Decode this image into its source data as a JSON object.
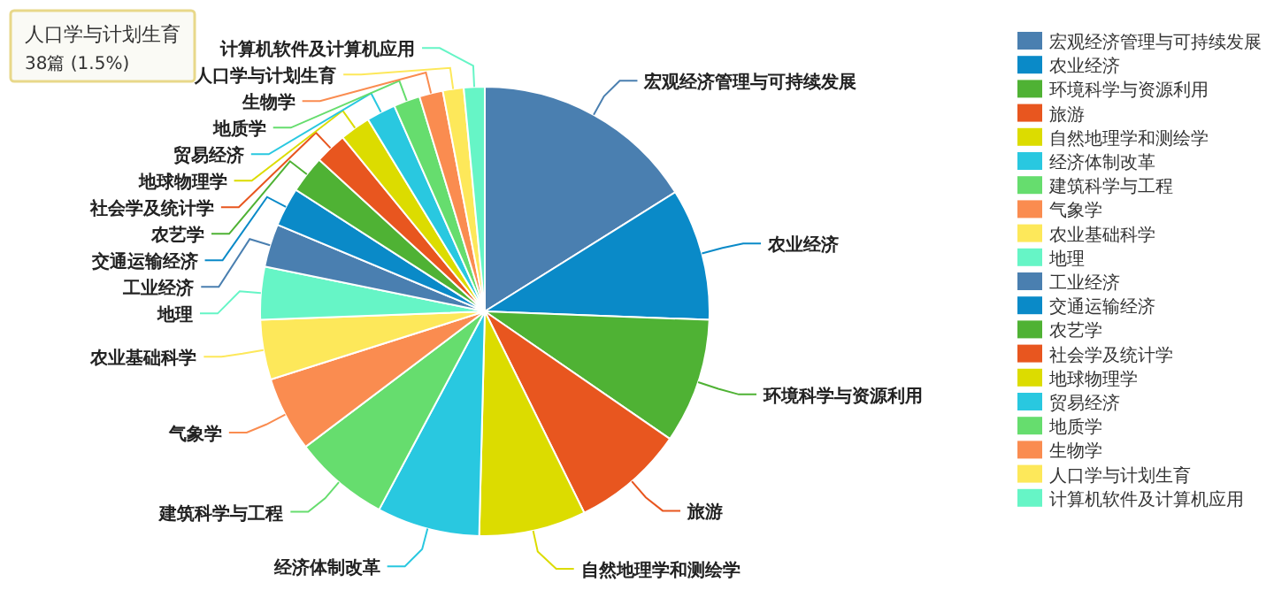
{
  "chart_data": {
    "type": "pie",
    "categories": [
      "宏观经济管理与可持续发展",
      "农业经济",
      "环境科学与资源利用",
      "旅游",
      "自然地理学和测绘学",
      "经济体制改革",
      "建筑科学与工程",
      "气象学",
      "农业基础科学",
      "地理",
      "工业经济",
      "交通运输经济",
      "农艺学",
      "社会学及统计学",
      "地球物理学",
      "贸易经济",
      "地质学",
      "生物学",
      "人口学与计划生育",
      "计算机软件及计算机应用"
    ],
    "values": [
      16.1,
      9.5,
      9.0,
      8.1,
      7.7,
      7.4,
      6.9,
      5.4,
      4.3,
      3.8,
      3.1,
      2.8,
      2.7,
      2.3,
      2.2,
      2.1,
      1.9,
      1.7,
      1.5,
      1.5
    ],
    "colors": [
      "#4a7fb0",
      "#0a8ac8",
      "#4fb234",
      "#e8561f",
      "#dcdc00",
      "#29c8e0",
      "#66dd6e",
      "#fa8c50",
      "#fde85a",
      "#66f5c6",
      "#4a7fb0",
      "#0a8ac8",
      "#4fb234",
      "#e8561f",
      "#dcdc00",
      "#29c8e0",
      "#66dd6e",
      "#fa8c50",
      "#fde85a",
      "#66f5c6"
    ],
    "annotations": [
      "人口学与计划生育",
      "38篇 (1.5%)"
    ],
    "legend": "right"
  }
}
